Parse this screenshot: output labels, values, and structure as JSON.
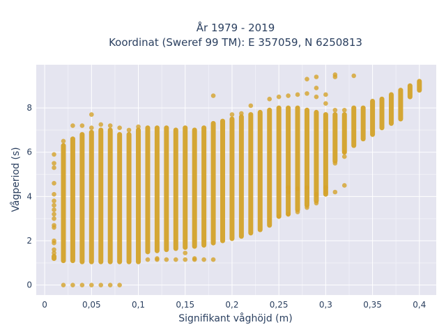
{
  "title": {
    "line1": "År 1979 - 2019",
    "line2": "Koordinat (Sweref 99 TM): E 357059, N 6250813"
  },
  "chart_data": {
    "type": "scatter",
    "title": "År 1979 - 2019 / Koordinat (Sweref 99 TM): E 357059, N 6250813",
    "xlabel": "Signifikant våghöjd (m)",
    "ylabel": "Vågperiod (s)",
    "xlim": [
      -0.009,
      0.418
    ],
    "ylim": [
      -0.45,
      9.95
    ],
    "x_ticks": [
      0,
      0.05,
      0.1,
      0.15,
      0.2,
      0.25,
      0.3,
      0.35,
      0.4
    ],
    "x_tick_labels": [
      "0",
      "0,05",
      "0,1",
      "0,15",
      "0,2",
      "0,25",
      "0,3",
      "0,35",
      "0,4"
    ],
    "y_ticks": [
      0,
      2,
      4,
      6,
      8
    ],
    "y_tick_labels": [
      "0",
      "2",
      "4",
      "6",
      "8"
    ],
    "grid": true,
    "marker_color": "#D4A32A",
    "plot_background": "#E5E5F0",
    "columns": [
      {
        "x": 0.01,
        "ymin": 1.2,
        "ymax": 1.3
      },
      {
        "x": 0.02,
        "ymin": 1.1,
        "ymax": 6.3
      },
      {
        "x": 0.03,
        "ymin": 1.1,
        "ymax": 6.6
      },
      {
        "x": 0.04,
        "ymin": 1.05,
        "ymax": 6.8
      },
      {
        "x": 0.05,
        "ymin": 1.05,
        "ymax": 6.9
      },
      {
        "x": 0.06,
        "ymin": 1.05,
        "ymax": 7.0
      },
      {
        "x": 0.07,
        "ymin": 1.05,
        "ymax": 7.0
      },
      {
        "x": 0.08,
        "ymin": 1.05,
        "ymax": 6.8
      },
      {
        "x": 0.09,
        "ymin": 1.05,
        "ymax": 6.8
      },
      {
        "x": 0.1,
        "ymin": 1.05,
        "ymax": 7.0
      },
      {
        "x": 0.11,
        "ymin": 1.5,
        "ymax": 7.1
      },
      {
        "x": 0.12,
        "ymin": 1.55,
        "ymax": 7.1
      },
      {
        "x": 0.13,
        "ymin": 1.6,
        "ymax": 7.1
      },
      {
        "x": 0.14,
        "ymin": 1.65,
        "ymax": 7.0
      },
      {
        "x": 0.15,
        "ymin": 1.7,
        "ymax": 7.1
      },
      {
        "x": 0.16,
        "ymin": 1.75,
        "ymax": 7.0
      },
      {
        "x": 0.17,
        "ymin": 1.8,
        "ymax": 7.1
      },
      {
        "x": 0.18,
        "ymin": 1.9,
        "ymax": 7.3
      },
      {
        "x": 0.19,
        "ymin": 2.0,
        "ymax": 7.4
      },
      {
        "x": 0.2,
        "ymin": 2.1,
        "ymax": 7.5
      },
      {
        "x": 0.21,
        "ymin": 2.2,
        "ymax": 7.6
      },
      {
        "x": 0.22,
        "ymin": 2.35,
        "ymax": 7.7
      },
      {
        "x": 0.23,
        "ymin": 2.5,
        "ymax": 7.8
      },
      {
        "x": 0.24,
        "ymin": 2.7,
        "ymax": 7.9
      },
      {
        "x": 0.25,
        "ymin": 3.1,
        "ymax": 8.0
      },
      {
        "x": 0.26,
        "ymin": 3.2,
        "ymax": 8.0
      },
      {
        "x": 0.27,
        "ymin": 3.4,
        "ymax": 8.0
      },
      {
        "x": 0.28,
        "ymin": 3.6,
        "ymax": 7.9
      },
      {
        "x": 0.29,
        "ymin": 3.8,
        "ymax": 7.8
      },
      {
        "x": 0.3,
        "ymin": 4.1,
        "ymax": 7.7
      },
      {
        "x": 0.31,
        "ymin": 5.6,
        "ymax": 7.7
      },
      {
        "x": 0.32,
        "ymin": 6.0,
        "ymax": 7.7
      },
      {
        "x": 0.33,
        "ymin": 6.3,
        "ymax": 8.0
      },
      {
        "x": 0.34,
        "ymin": 6.6,
        "ymax": 8.0
      },
      {
        "x": 0.35,
        "ymin": 6.8,
        "ymax": 8.3
      },
      {
        "x": 0.36,
        "ymin": 7.1,
        "ymax": 8.4
      },
      {
        "x": 0.37,
        "ymin": 7.3,
        "ymax": 8.6
      },
      {
        "x": 0.38,
        "ymin": 7.5,
        "ymax": 8.8
      },
      {
        "x": 0.39,
        "ymin": 8.5,
        "ymax": 9.0
      },
      {
        "x": 0.4,
        "ymin": 8.8,
        "ymax": 9.2
      }
    ],
    "points": [
      {
        "x": 0.01,
        "y": 5.9
      },
      {
        "x": 0.01,
        "y": 5.5
      },
      {
        "x": 0.01,
        "y": 5.3
      },
      {
        "x": 0.01,
        "y": 4.6
      },
      {
        "x": 0.01,
        "y": 4.1
      },
      {
        "x": 0.01,
        "y": 3.8
      },
      {
        "x": 0.01,
        "y": 3.6
      },
      {
        "x": 0.01,
        "y": 3.4
      },
      {
        "x": 0.01,
        "y": 3.2
      },
      {
        "x": 0.01,
        "y": 3.0
      },
      {
        "x": 0.01,
        "y": 2.7
      },
      {
        "x": 0.01,
        "y": 2.6
      },
      {
        "x": 0.01,
        "y": 2.0
      },
      {
        "x": 0.01,
        "y": 1.9
      },
      {
        "x": 0.01,
        "y": 1.6
      },
      {
        "x": 0.01,
        "y": 1.45
      },
      {
        "x": 0.02,
        "y": 6.5
      },
      {
        "x": 0.03,
        "y": 7.2
      },
      {
        "x": 0.04,
        "y": 7.2
      },
      {
        "x": 0.05,
        "y": 7.1
      },
      {
        "x": 0.05,
        "y": 7.7
      },
      {
        "x": 0.06,
        "y": 7.25
      },
      {
        "x": 0.07,
        "y": 7.2
      },
      {
        "x": 0.08,
        "y": 7.1
      },
      {
        "x": 0.09,
        "y": 7.0
      },
      {
        "x": 0.1,
        "y": 7.15
      },
      {
        "x": 0.02,
        "y": 0
      },
      {
        "x": 0.03,
        "y": 0
      },
      {
        "x": 0.04,
        "y": 0
      },
      {
        "x": 0.05,
        "y": 0
      },
      {
        "x": 0.06,
        "y": 0
      },
      {
        "x": 0.07,
        "y": 0
      },
      {
        "x": 0.08,
        "y": 0
      },
      {
        "x": 0.11,
        "y": 1.15
      },
      {
        "x": 0.12,
        "y": 1.15
      },
      {
        "x": 0.13,
        "y": 1.15
      },
      {
        "x": 0.14,
        "y": 1.15
      },
      {
        "x": 0.15,
        "y": 1.15
      },
      {
        "x": 0.15,
        "y": 1.45
      },
      {
        "x": 0.16,
        "y": 1.15
      },
      {
        "x": 0.17,
        "y": 1.15
      },
      {
        "x": 0.18,
        "y": 1.15
      },
      {
        "x": 0.12,
        "y": 1.2
      },
      {
        "x": 0.16,
        "y": 1.2
      },
      {
        "x": 0.18,
        "y": 8.55
      },
      {
        "x": 0.2,
        "y": 7.7
      },
      {
        "x": 0.21,
        "y": 7.75
      },
      {
        "x": 0.22,
        "y": 8.1
      },
      {
        "x": 0.24,
        "y": 8.4
      },
      {
        "x": 0.25,
        "y": 8.5
      },
      {
        "x": 0.26,
        "y": 8.55
      },
      {
        "x": 0.27,
        "y": 8.6
      },
      {
        "x": 0.28,
        "y": 8.65
      },
      {
        "x": 0.28,
        "y": 9.3
      },
      {
        "x": 0.29,
        "y": 8.5
      },
      {
        "x": 0.29,
        "y": 8.9
      },
      {
        "x": 0.29,
        "y": 9.4
      },
      {
        "x": 0.3,
        "y": 8.6
      },
      {
        "x": 0.31,
        "y": 9.4
      },
      {
        "x": 0.31,
        "y": 9.5
      },
      {
        "x": 0.33,
        "y": 9.45
      },
      {
        "x": 0.3,
        "y": 8.2
      },
      {
        "x": 0.31,
        "y": 7.9
      },
      {
        "x": 0.32,
        "y": 7.9
      },
      {
        "x": 0.26,
        "y": 4.2
      },
      {
        "x": 0.26,
        "y": 4.4
      },
      {
        "x": 0.27,
        "y": 4.35
      },
      {
        "x": 0.28,
        "y": 4.4
      },
      {
        "x": 0.29,
        "y": 4.1
      },
      {
        "x": 0.3,
        "y": 4.4
      },
      {
        "x": 0.3,
        "y": 4.2
      },
      {
        "x": 0.31,
        "y": 4.2
      },
      {
        "x": 0.32,
        "y": 4.5
      },
      {
        "x": 0.31,
        "y": 5.5
      },
      {
        "x": 0.32,
        "y": 5.8
      },
      {
        "x": 0.32,
        "y": 6.0
      },
      {
        "x": 0.25,
        "y": 3.1
      },
      {
        "x": 0.26,
        "y": 3.2
      },
      {
        "x": 0.27,
        "y": 3.3
      },
      {
        "x": 0.28,
        "y": 3.5
      },
      {
        "x": 0.29,
        "y": 3.7
      }
    ]
  }
}
